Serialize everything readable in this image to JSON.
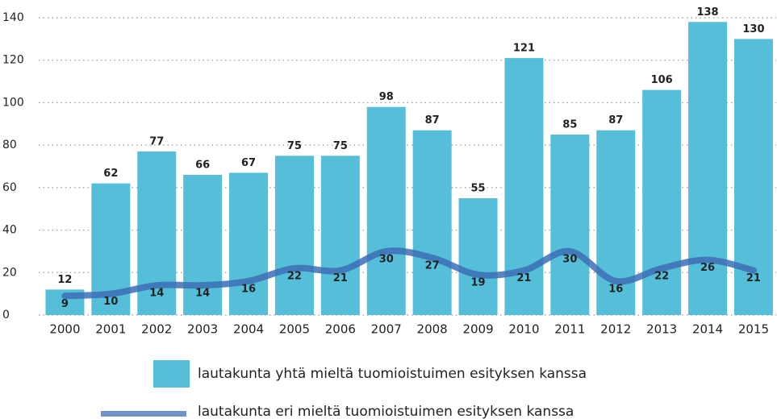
{
  "chart_data": {
    "type": "bar-line",
    "categories": [
      "2000",
      "2001",
      "2002",
      "2003",
      "2004",
      "2005",
      "2006",
      "2007",
      "2008",
      "2009",
      "2010",
      "2011",
      "2012",
      "2013",
      "2014",
      "2015"
    ],
    "series": [
      {
        "name": "lautakunta yhtä mieltä tuomioistuimen esityksen kanssa",
        "type": "bar",
        "color": "#55bed8",
        "values": [
          12,
          62,
          77,
          66,
          67,
          75,
          75,
          98,
          87,
          55,
          121,
          85,
          87,
          106,
          138,
          130
        ]
      },
      {
        "name": "lautakunta eri mieltä tuomioistuimen esityksen kanssa",
        "type": "line",
        "color": "#3d6fb6",
        "values": [
          9,
          10,
          14,
          14,
          16,
          22,
          21,
          30,
          27,
          19,
          21,
          30,
          16,
          22,
          26,
          21
        ]
      }
    ],
    "ylim": [
      0,
      140
    ],
    "yticks": [
      0,
      20,
      40,
      60,
      80,
      100,
      120,
      140
    ],
    "grid": true
  }
}
